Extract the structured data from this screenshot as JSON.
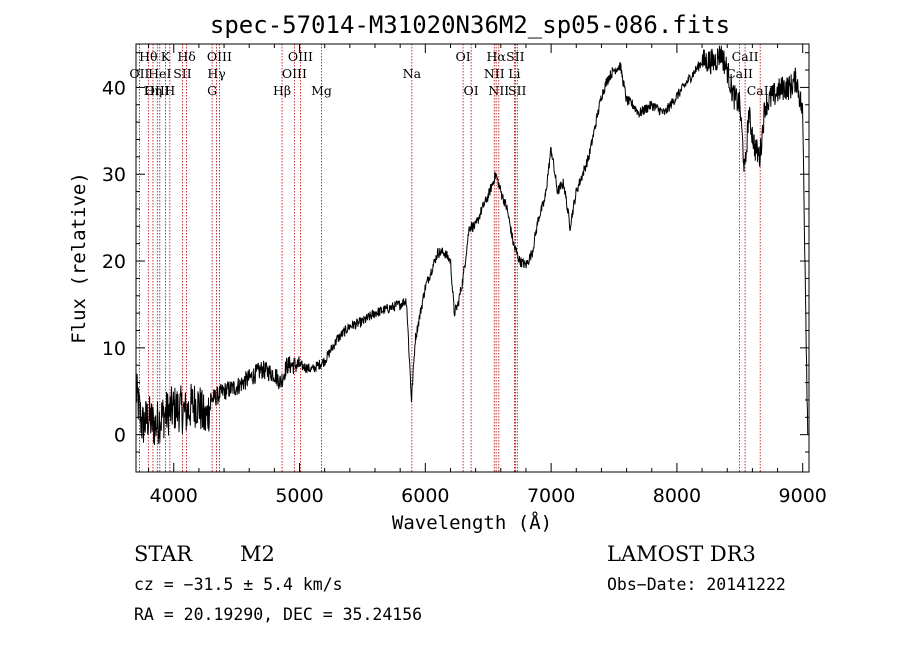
{
  "chart_data": {
    "type": "line",
    "title": "spec-57014-M31020N36M2_sp05-086.fits",
    "xlabel": "Wavelength (Å)",
    "ylabel": "Flux (relative)",
    "xlim": [
      3700,
      9050
    ],
    "ylim": [
      -4.3,
      45
    ],
    "xticks": [
      4000,
      5000,
      6000,
      7000,
      8000,
      9000
    ],
    "yticks": [
      0,
      10,
      20,
      30,
      40
    ],
    "spectrum_anchors": [
      [
        3700,
        5
      ],
      [
        3750,
        1
      ],
      [
        3800,
        2
      ],
      [
        3850,
        1
      ],
      [
        3900,
        2
      ],
      [
        3950,
        2.5
      ],
      [
        4000,
        3
      ],
      [
        4050,
        3
      ],
      [
        4100,
        2.5
      ],
      [
        4150,
        3.5
      ],
      [
        4200,
        3.5
      ],
      [
        4250,
        1.5
      ],
      [
        4300,
        4
      ],
      [
        4400,
        5
      ],
      [
        4500,
        5.5
      ],
      [
        4600,
        6.5
      ],
      [
        4700,
        7.5
      ],
      [
        4800,
        7
      ],
      [
        4850,
        6
      ],
      [
        4900,
        8
      ],
      [
        5000,
        8
      ],
      [
        5100,
        7.5
      ],
      [
        5200,
        8.5
      ],
      [
        5300,
        11
      ],
      [
        5400,
        12.5
      ],
      [
        5500,
        13
      ],
      [
        5600,
        14
      ],
      [
        5700,
        14.5
      ],
      [
        5800,
        15
      ],
      [
        5850,
        15.5
      ],
      [
        5890,
        4
      ],
      [
        5920,
        11
      ],
      [
        6000,
        17
      ],
      [
        6050,
        19
      ],
      [
        6100,
        21
      ],
      [
        6150,
        21
      ],
      [
        6200,
        20
      ],
      [
        6230,
        14
      ],
      [
        6260,
        15
      ],
      [
        6300,
        18
      ],
      [
        6350,
        24
      ],
      [
        6400,
        24
      ],
      [
        6450,
        26
      ],
      [
        6500,
        27.5
      ],
      [
        6560,
        30
      ],
      [
        6600,
        28
      ],
      [
        6650,
        26
      ],
      [
        6700,
        22
      ],
      [
        6750,
        20
      ],
      [
        6800,
        19.5
      ],
      [
        6850,
        21
      ],
      [
        6900,
        25
      ],
      [
        6950,
        27
      ],
      [
        7000,
        33
      ],
      [
        7050,
        28
      ],
      [
        7100,
        29
      ],
      [
        7150,
        24
      ],
      [
        7200,
        28
      ],
      [
        7250,
        30
      ],
      [
        7300,
        32
      ],
      [
        7400,
        39
      ],
      [
        7450,
        41
      ],
      [
        7500,
        42
      ],
      [
        7550,
        42.5
      ],
      [
        7600,
        38.5
      ],
      [
        7650,
        38
      ],
      [
        7700,
        37
      ],
      [
        7800,
        38
      ],
      [
        7900,
        37
      ],
      [
        8000,
        39
      ],
      [
        8100,
        41
      ],
      [
        8200,
        43
      ],
      [
        8300,
        43
      ],
      [
        8350,
        44
      ],
      [
        8400,
        42
      ],
      [
        8450,
        39
      ],
      [
        8500,
        38
      ],
      [
        8540,
        30
      ],
      [
        8570,
        37
      ],
      [
        8620,
        33
      ],
      [
        8660,
        32
      ],
      [
        8700,
        38
      ],
      [
        8800,
        39.5
      ],
      [
        8850,
        40
      ],
      [
        8900,
        40
      ],
      [
        8950,
        41
      ],
      [
        9000,
        37
      ],
      [
        9040,
        0
      ]
    ],
    "spectral_lines": [
      {
        "label": "Hθ",
        "wavelength": 3798,
        "row": 0
      },
      {
        "label": "OII",
        "wavelength": 3727,
        "row": 1
      },
      {
        "label": "OIII",
        "wavelength": 3869,
        "row": 2
      },
      {
        "label": "HeI",
        "wavelength": 3889,
        "row": 1
      },
      {
        "label": "Hη",
        "wavelength": 3835,
        "row": 2
      },
      {
        "label": "K",
        "wavelength": 3934,
        "row": 0
      },
      {
        "label": "H",
        "wavelength": 3969,
        "row": 2
      },
      {
        "label": "SII",
        "wavelength": 4069,
        "row": 1
      },
      {
        "label": "Hδ",
        "wavelength": 4102,
        "row": 0
      },
      {
        "label": "OIII",
        "wavelength": 4363,
        "row": 0
      },
      {
        "label": "Hγ",
        "wavelength": 4340,
        "row": 1
      },
      {
        "label": "G",
        "wavelength": 4305,
        "row": 2
      },
      {
        "label": "Hβ",
        "wavelength": 4861,
        "row": 2
      },
      {
        "label": "OIII",
        "wavelength": 5007,
        "row": 0
      },
      {
        "label": "OIII",
        "wavelength": 4959,
        "row": 1
      },
      {
        "label": "Mg",
        "wavelength": 5175,
        "row": 2
      },
      {
        "label": "Na",
        "wavelength": 5893,
        "row": 1
      },
      {
        "label": "OI",
        "wavelength": 6300,
        "row": 0
      },
      {
        "label": "OI",
        "wavelength": 6364,
        "row": 2
      },
      {
        "label": "Hα",
        "wavelength": 6563,
        "row": 0
      },
      {
        "label": "NII",
        "wavelength": 6548,
        "row": 1
      },
      {
        "label": "NII",
        "wavelength": 6584,
        "row": 2
      },
      {
        "label": "SII",
        "wavelength": 6716,
        "row": 0
      },
      {
        "label": "Li",
        "wavelength": 6708,
        "row": 1
      },
      {
        "label": "SII",
        "wavelength": 6731,
        "row": 2
      },
      {
        "label": "CaII",
        "wavelength": 8542,
        "row": 0
      },
      {
        "label": "CaII",
        "wavelength": 8498,
        "row": 1
      },
      {
        "label": "CaII",
        "wavelength": 8662,
        "row": 2
      }
    ]
  },
  "info": {
    "class": "STAR",
    "subclass": "M2",
    "survey": "LAMOST DR3",
    "cz": "cz = −31.5 ± 5.4 km/s",
    "obs_date": "Obs−Date: 20141222",
    "radec": "RA =  20.19290, DEC =  35.24156"
  },
  "colors": {
    "spectrum": "#000000",
    "line_marker": "#b30000",
    "axes": "#000000"
  }
}
